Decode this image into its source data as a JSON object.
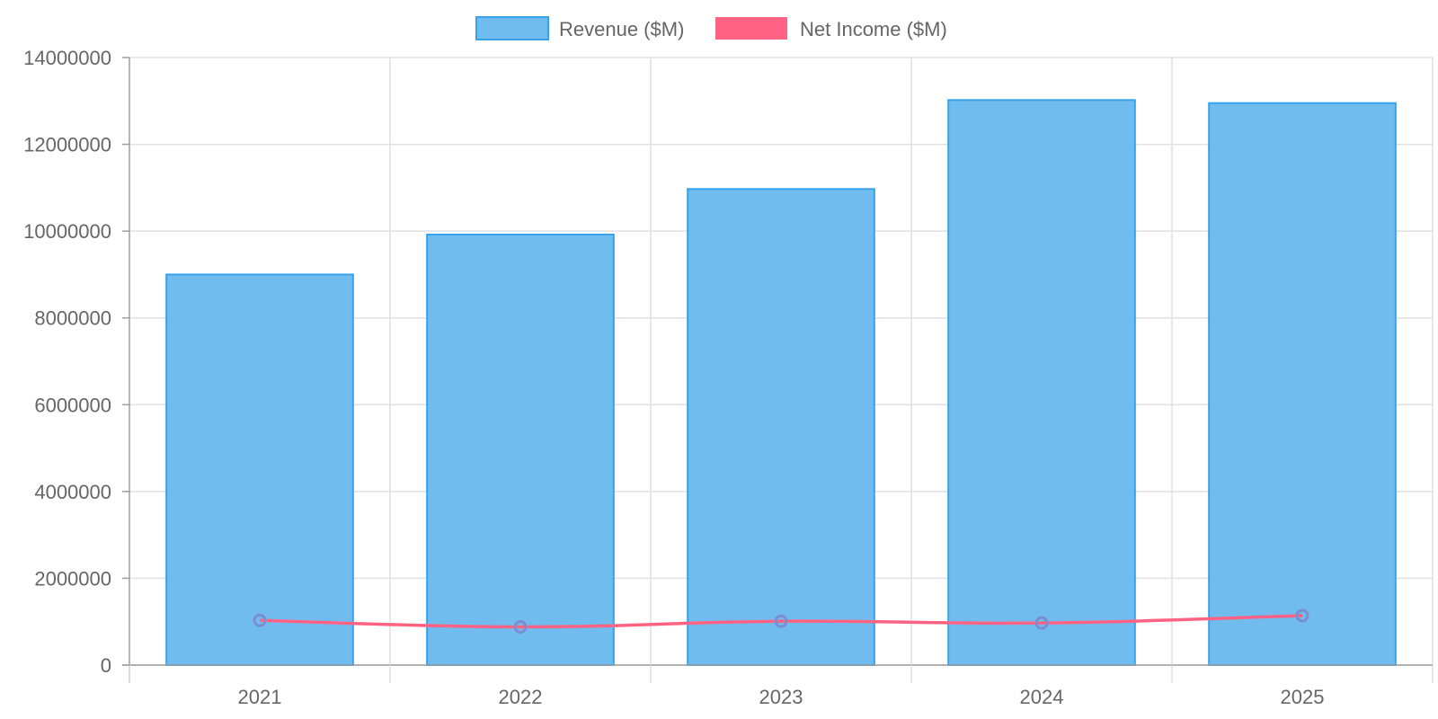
{
  "colors": {
    "revenue_fill": "#71bcef",
    "revenue_border": "#36a2eb",
    "net_income_line": "#ff6384",
    "point_color": "#7b8ed1",
    "grid": "#e1e1e1",
    "axis": "#9e9e9e",
    "text": "#666666"
  },
  "chart_data": {
    "type": "bar",
    "categories": [
      "2021",
      "2022",
      "2023",
      "2024",
      "2025"
    ],
    "series": [
      {
        "name": "Revenue ($M)",
        "type": "bar",
        "values": [
          9000000,
          9920000,
          10970000,
          13020000,
          12950000
        ]
      },
      {
        "name": "Net Income ($M)",
        "type": "line",
        "values": [
          1030000,
          880000,
          1010000,
          970000,
          1140000
        ]
      }
    ],
    "ylim": [
      0,
      14000000
    ],
    "yticks": [
      "0",
      "2000000",
      "4000000",
      "6000000",
      "8000000",
      "10000000",
      "12000000",
      "14000000"
    ],
    "grid": true,
    "legend_position": "top-center",
    "title": "",
    "xlabel": "",
    "ylabel": ""
  }
}
